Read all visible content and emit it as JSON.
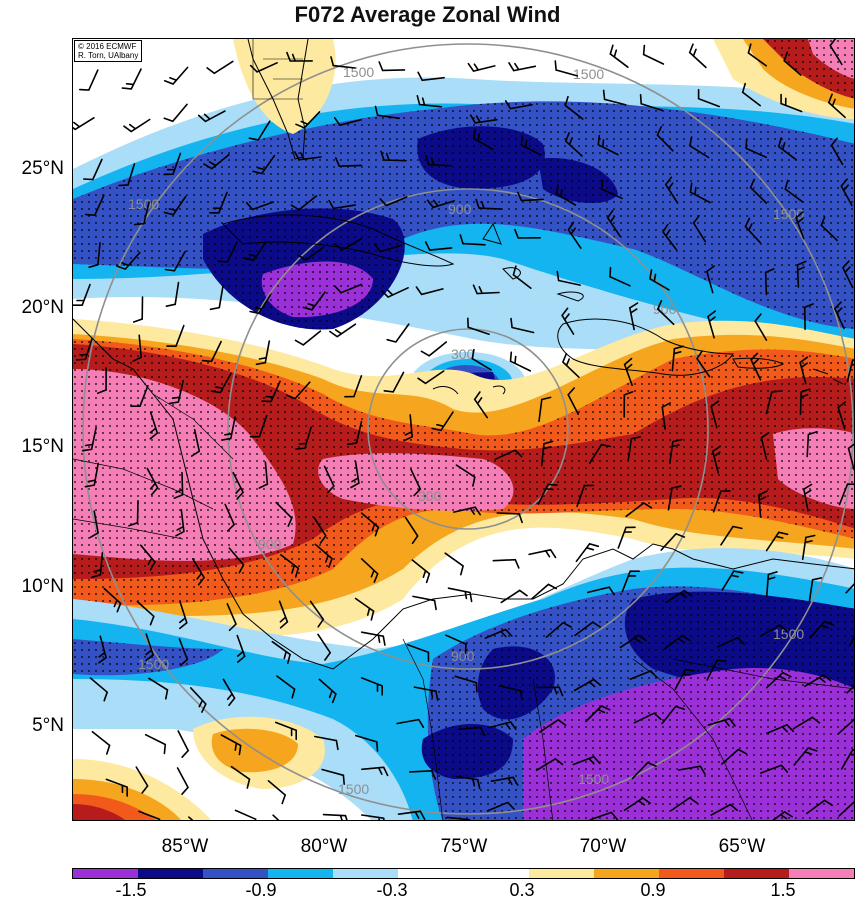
{
  "title": "F072 Average Zonal Wind",
  "credit": [
    "© 2016 ECMWF",
    "R. Torn, UAlbany"
  ],
  "lat_labels": [
    "25°N",
    "20°N",
    "15°N",
    "10°N",
    "5°N"
  ],
  "lon_labels": [
    "85°W",
    "80°W",
    "75°W",
    "70°W",
    "65°W"
  ],
  "colorbar": {
    "colors": [
      "#9b30d9",
      "#0b0b8a",
      "#3452c5",
      "#13b4ef",
      "#a9ddf8",
      "#ffffff",
      "#ffffff",
      "#fde9a0",
      "#f6a51f",
      "#f15a1b",
      "#b71c1c",
      "#f57eb6"
    ],
    "labels": [
      "-1.5",
      "-0.9",
      "-0.3",
      "0.3",
      "0.9",
      "1.5"
    ]
  },
  "distance_rings": {
    "labels": [
      "300",
      "900",
      "1500"
    ]
  }
}
